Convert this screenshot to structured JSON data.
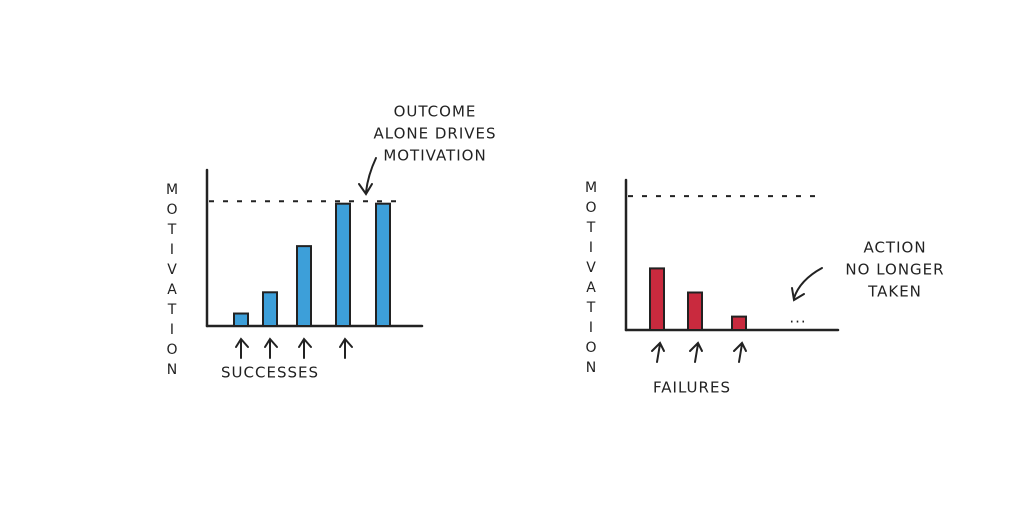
{
  "chart_data": [
    {
      "type": "bar",
      "ylabel": "MOTIVATION",
      "xlabel": "SUCCESSES",
      "annotation": [
        "OUTCOME",
        "ALONE DRIVES",
        "MOTIVATION"
      ],
      "categories": [
        null,
        null,
        null,
        null,
        null
      ],
      "values": [
        10,
        27,
        64,
        98,
        98
      ],
      "color": "#3d9fd9",
      "ylim": [
        0,
        125
      ],
      "reference_line": 100
    },
    {
      "type": "bar",
      "ylabel": "MOTIVATION",
      "xlabel": "FAILURES",
      "annotation": [
        "ACTION",
        "NO LONGER",
        "TAKEN"
      ],
      "trailing_text": "...",
      "categories": [
        null,
        null,
        null
      ],
      "values": [
        46,
        28,
        10
      ],
      "color": "#c92a3e",
      "ylim": [
        0,
        112
      ],
      "reference_line": 100
    }
  ]
}
